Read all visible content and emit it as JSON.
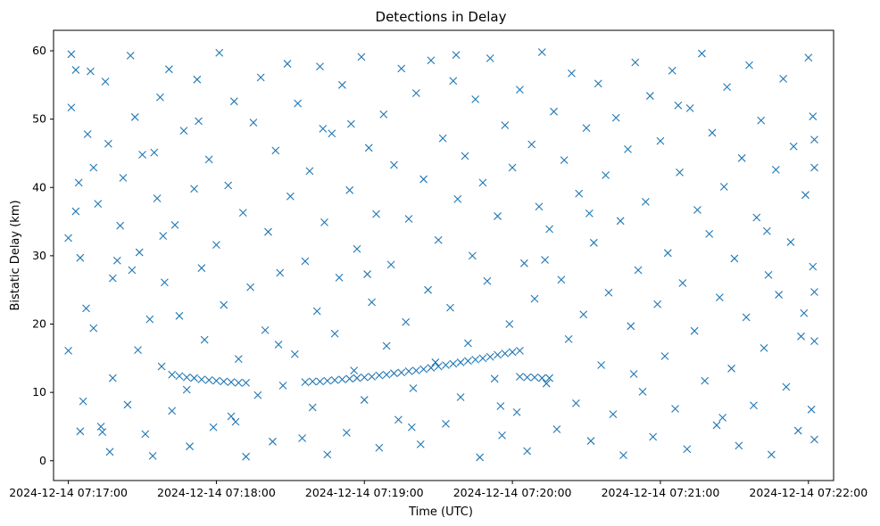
{
  "chart_data": {
    "type": "scatter",
    "title": "Detections in Delay",
    "xlabel": "Time (UTC)",
    "ylabel": "Bistatic Delay (km)",
    "marker": "x",
    "color": "#1f77b4",
    "xlim": [
      -0.1,
      5.17
    ],
    "ylim": [
      -2.9,
      63.0
    ],
    "x_unit": "minutes after 2024-12-14 07:17:00",
    "xticks": [
      0,
      1,
      2,
      3,
      4,
      5
    ],
    "xtick_labels": [
      "2024-12-14 07:17:00",
      "2024-12-14 07:18:00",
      "2024-12-14 07:19:00",
      "2024-12-14 07:20:00",
      "2024-12-14 07:21:00",
      "2024-12-14 07:22:00"
    ],
    "yticks": [
      0,
      10,
      20,
      30,
      40,
      50,
      60
    ],
    "ytick_labels": [
      "0",
      "10",
      "20",
      "30",
      "40",
      "50",
      "60"
    ],
    "track_segments": [
      {
        "name": "track-1",
        "x": [
          0.7,
          0.75,
          0.8,
          0.85,
          0.9,
          0.95,
          1.0,
          1.05,
          1.1,
          1.15,
          1.2
        ],
        "y": [
          12.6,
          12.4,
          12.2,
          12.1,
          11.9,
          11.8,
          11.7,
          11.6,
          11.5,
          11.4,
          11.4
        ]
      },
      {
        "name": "track-2",
        "x": [
          1.6,
          1.65,
          1.7,
          1.75,
          1.8,
          1.85,
          1.9,
          1.95,
          2.0,
          2.05,
          2.1,
          2.15,
          2.2,
          2.25,
          2.3,
          2.35,
          2.4,
          2.45,
          2.5,
          2.55,
          2.6,
          2.65,
          2.7,
          2.75,
          2.8,
          2.85,
          2.9,
          2.95,
          3.0,
          3.05
        ],
        "y": [
          11.5,
          11.6,
          11.6,
          11.7,
          11.8,
          11.9,
          12.0,
          12.1,
          12.2,
          12.3,
          12.5,
          12.6,
          12.8,
          12.9,
          13.1,
          13.2,
          13.4,
          13.6,
          13.8,
          14.0,
          14.2,
          14.4,
          14.6,
          14.8,
          15.0,
          15.2,
          15.5,
          15.7,
          15.9,
          16.1
        ]
      },
      {
        "name": "track-3",
        "x": [
          3.05,
          3.1,
          3.15,
          3.2,
          3.25
        ],
        "y": [
          12.3,
          12.2,
          12.2,
          12.1,
          12.1
        ]
      }
    ],
    "noise_points": [
      [
        0.0,
        16.1
      ],
      [
        0.0,
        32.6
      ],
      [
        0.02,
        59.5
      ],
      [
        0.02,
        51.7
      ],
      [
        0.05,
        36.5
      ],
      [
        0.07,
        40.7
      ],
      [
        0.08,
        29.7
      ],
      [
        0.08,
        4.3
      ],
      [
        0.1,
        8.7
      ],
      [
        0.12,
        22.3
      ],
      [
        0.13,
        47.8
      ],
      [
        0.15,
        57.0
      ],
      [
        0.17,
        19.4
      ],
      [
        0.2,
        37.6
      ],
      [
        0.22,
        5.0
      ],
      [
        0.23,
        4.2
      ],
      [
        0.25,
        55.5
      ],
      [
        0.27,
        46.4
      ],
      [
        0.28,
        1.3
      ],
      [
        0.3,
        26.7
      ],
      [
        0.33,
        29.3
      ],
      [
        0.35,
        34.4
      ],
      [
        0.37,
        41.4
      ],
      [
        0.4,
        8.2
      ],
      [
        0.42,
        59.3
      ],
      [
        0.45,
        50.3
      ],
      [
        0.47,
        16.2
      ],
      [
        0.48,
        30.5
      ],
      [
        0.5,
        44.8
      ],
      [
        0.52,
        3.9
      ],
      [
        0.55,
        20.7
      ],
      [
        0.57,
        0.7
      ],
      [
        0.6,
        38.4
      ],
      [
        0.62,
        53.2
      ],
      [
        0.63,
        13.8
      ],
      [
        0.65,
        26.1
      ],
      [
        0.68,
        57.3
      ],
      [
        0.7,
        7.3
      ],
      [
        0.72,
        34.5
      ],
      [
        0.75,
        21.2
      ],
      [
        0.78,
        48.3
      ],
      [
        0.8,
        10.4
      ],
      [
        0.82,
        2.1
      ],
      [
        0.85,
        39.8
      ],
      [
        0.87,
        55.8
      ],
      [
        0.9,
        28.2
      ],
      [
        0.92,
        17.7
      ],
      [
        0.95,
        44.1
      ],
      [
        0.98,
        4.9
      ],
      [
        1.0,
        31.6
      ],
      [
        1.02,
        59.7
      ],
      [
        1.05,
        22.8
      ],
      [
        1.08,
        40.3
      ],
      [
        1.1,
        6.5
      ],
      [
        1.12,
        52.6
      ],
      [
        1.15,
        14.9
      ],
      [
        1.18,
        36.3
      ],
      [
        1.2,
        0.6
      ],
      [
        1.23,
        25.4
      ],
      [
        1.25,
        49.5
      ],
      [
        1.28,
        9.6
      ],
      [
        1.3,
        56.1
      ],
      [
        1.33,
        19.1
      ],
      [
        1.35,
        33.5
      ],
      [
        1.38,
        2.8
      ],
      [
        1.4,
        45.4
      ],
      [
        1.43,
        27.5
      ],
      [
        1.45,
        11.0
      ],
      [
        1.48,
        58.1
      ],
      [
        1.5,
        38.7
      ],
      [
        1.53,
        15.6
      ],
      [
        1.55,
        52.3
      ],
      [
        1.58,
        3.3
      ],
      [
        1.6,
        29.2
      ],
      [
        1.63,
        42.4
      ],
      [
        1.65,
        7.8
      ],
      [
        1.68,
        21.9
      ],
      [
        1.7,
        57.7
      ],
      [
        1.73,
        34.9
      ],
      [
        1.75,
        0.9
      ],
      [
        1.78,
        47.9
      ],
      [
        1.8,
        18.6
      ],
      [
        1.83,
        26.8
      ],
      [
        1.85,
        55.0
      ],
      [
        1.88,
        4.1
      ],
      [
        1.9,
        39.6
      ],
      [
        1.93,
        13.2
      ],
      [
        1.95,
        31.0
      ],
      [
        1.98,
        59.1
      ],
      [
        2.0,
        8.9
      ],
      [
        2.03,
        45.8
      ],
      [
        2.05,
        23.2
      ],
      [
        2.08,
        36.1
      ],
      [
        2.1,
        1.9
      ],
      [
        2.13,
        50.7
      ],
      [
        2.15,
        16.8
      ],
      [
        2.18,
        28.7
      ],
      [
        2.2,
        43.3
      ],
      [
        2.23,
        6.0
      ],
      [
        2.25,
        57.4
      ],
      [
        2.28,
        20.3
      ],
      [
        2.3,
        35.4
      ],
      [
        2.33,
        10.6
      ],
      [
        2.35,
        53.8
      ],
      [
        2.38,
        2.4
      ],
      [
        2.4,
        41.2
      ],
      [
        2.43,
        25.0
      ],
      [
        2.45,
        58.6
      ],
      [
        2.48,
        14.4
      ],
      [
        2.5,
        32.3
      ],
      [
        2.53,
        47.2
      ],
      [
        2.55,
        5.4
      ],
      [
        2.58,
        22.4
      ],
      [
        2.6,
        55.6
      ],
      [
        2.63,
        38.3
      ],
      [
        2.65,
        9.3
      ],
      [
        2.68,
        44.6
      ],
      [
        2.7,
        17.2
      ],
      [
        2.73,
        30.0
      ],
      [
        2.75,
        52.9
      ],
      [
        2.78,
        0.5
      ],
      [
        2.8,
        40.7
      ],
      [
        2.83,
        26.3
      ],
      [
        2.85,
        58.9
      ],
      [
        2.88,
        12.0
      ],
      [
        2.9,
        35.8
      ],
      [
        2.93,
        3.7
      ],
      [
        2.95,
        49.1
      ],
      [
        2.98,
        20.0
      ],
      [
        3.0,
        42.9
      ],
      [
        3.03,
        7.1
      ],
      [
        3.05,
        54.3
      ],
      [
        3.08,
        28.9
      ],
      [
        3.1,
        1.4
      ],
      [
        3.13,
        46.3
      ],
      [
        3.15,
        23.7
      ],
      [
        3.18,
        37.2
      ],
      [
        3.2,
        59.8
      ],
      [
        3.23,
        11.3
      ],
      [
        3.25,
        33.9
      ],
      [
        3.28,
        51.1
      ],
      [
        3.3,
        4.6
      ],
      [
        3.33,
        26.5
      ],
      [
        3.35,
        44.0
      ],
      [
        3.38,
        17.8
      ],
      [
        3.4,
        56.7
      ],
      [
        3.43,
        8.4
      ],
      [
        3.45,
        39.1
      ],
      [
        3.48,
        21.4
      ],
      [
        3.5,
        48.7
      ],
      [
        3.53,
        2.9
      ],
      [
        3.55,
        31.9
      ],
      [
        3.58,
        55.2
      ],
      [
        3.6,
        14.0
      ],
      [
        3.63,
        41.8
      ],
      [
        3.65,
        24.6
      ],
      [
        3.68,
        6.8
      ],
      [
        3.7,
        50.2
      ],
      [
        3.73,
        35.1
      ],
      [
        3.75,
        0.8
      ],
      [
        3.78,
        45.6
      ],
      [
        3.8,
        19.7
      ],
      [
        3.83,
        58.3
      ],
      [
        3.85,
        27.9
      ],
      [
        3.88,
        10.1
      ],
      [
        3.9,
        37.9
      ],
      [
        3.93,
        53.4
      ],
      [
        3.95,
        3.5
      ],
      [
        3.98,
        22.9
      ],
      [
        4.0,
        46.8
      ],
      [
        4.03,
        15.3
      ],
      [
        4.05,
        30.4
      ],
      [
        4.08,
        57.1
      ],
      [
        4.1,
        7.6
      ],
      [
        4.13,
        42.2
      ],
      [
        4.15,
        26.0
      ],
      [
        4.18,
        1.7
      ],
      [
        4.2,
        51.6
      ],
      [
        4.23,
        19.0
      ],
      [
        4.25,
        36.7
      ],
      [
        4.28,
        59.6
      ],
      [
        4.3,
        11.7
      ],
      [
        4.33,
        33.2
      ],
      [
        4.35,
        48.0
      ],
      [
        4.38,
        5.2
      ],
      [
        4.4,
        23.9
      ],
      [
        4.43,
        40.1
      ],
      [
        4.45,
        54.7
      ],
      [
        4.48,
        13.5
      ],
      [
        4.5,
        29.6
      ],
      [
        4.53,
        2.2
      ],
      [
        4.55,
        44.3
      ],
      [
        4.58,
        21.0
      ],
      [
        4.6,
        57.9
      ],
      [
        4.63,
        8.1
      ],
      [
        4.65,
        35.6
      ],
      [
        4.68,
        49.8
      ],
      [
        4.7,
        16.5
      ],
      [
        4.73,
        27.2
      ],
      [
        4.75,
        0.9
      ],
      [
        4.78,
        42.6
      ],
      [
        4.8,
        24.3
      ],
      [
        4.83,
        55.9
      ],
      [
        4.85,
        10.8
      ],
      [
        4.88,
        32.0
      ],
      [
        4.9,
        46.0
      ],
      [
        4.93,
        4.4
      ],
      [
        4.95,
        18.2
      ],
      [
        4.98,
        38.9
      ],
      [
        5.0,
        59.0
      ],
      [
        5.02,
        7.5
      ],
      [
        5.03,
        28.4
      ],
      [
        5.03,
        50.4
      ],
      [
        5.04,
        17.5
      ],
      [
        5.04,
        3.1
      ],
      [
        5.04,
        42.9
      ],
      [
        5.04,
        47.0
      ],
      [
        5.04,
        24.7
      ],
      [
        0.05,
        57.2
      ],
      [
        0.17,
        42.9
      ],
      [
        0.3,
        12.1
      ],
      [
        0.43,
        27.9
      ],
      [
        0.58,
        45.1
      ],
      [
        0.88,
        49.7
      ],
      [
        1.13,
        5.7
      ],
      [
        1.42,
        17.0
      ],
      [
        1.72,
        48.6
      ],
      [
        2.02,
        27.3
      ],
      [
        2.32,
        4.9
      ],
      [
        2.62,
        59.4
      ],
      [
        2.92,
        8.0
      ],
      [
        3.22,
        29.4
      ],
      [
        3.52,
        36.2
      ],
      [
        3.82,
        12.7
      ],
      [
        4.12,
        52.0
      ],
      [
        4.42,
        6.3
      ],
      [
        4.72,
        33.6
      ],
      [
        4.97,
        21.6
      ],
      [
        0.64,
        32.9
      ],
      [
        1.91,
        49.3
      ]
    ]
  }
}
